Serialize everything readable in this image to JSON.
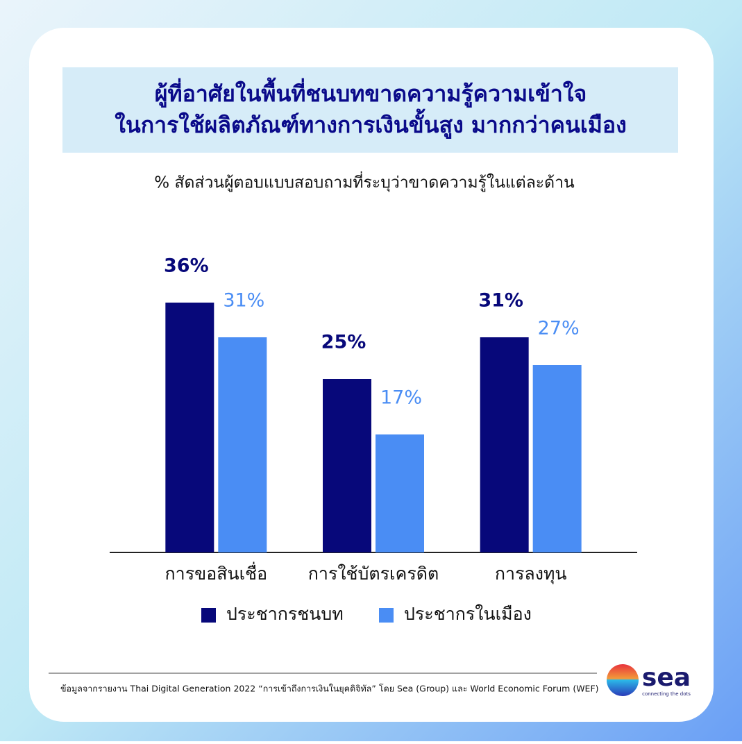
{
  "chart_data": {
    "type": "bar",
    "title": [
      "ผู้ที่อาศัยในพื้นที่ชนบทขาดความรู้ความเข้าใจ",
      "ในการใช้ผลิตภัณฑ์ทางการเงินขั้นสูง มากกว่าคนเมือง"
    ],
    "subtitle": "% สัดส่วนผู้ตอบแบบสอบถามที่ระบุว่าขาดความรู้ในแต่ละด้าน",
    "categories": [
      "การขอสินเชื่อ",
      "การใช้บัตรเครดิต",
      "การลงทุน"
    ],
    "series": [
      {
        "name": "ประชากรชนบท",
        "color": "#07087a",
        "values": [
          36,
          25,
          31
        ],
        "value_labels": [
          "36%",
          "25%",
          "31%"
        ]
      },
      {
        "name": "ประชากรในเมือง",
        "color": "#4a8df4",
        "values": [
          31,
          17,
          27
        ],
        "value_labels": [
          "31%",
          "17%",
          "27%"
        ]
      }
    ],
    "ylim": [
      0,
      40
    ]
  },
  "footer": {
    "source": "ข้อมูลจากรายงาน Thai Digital Generation 2022 “การเข้าถึงการเงินในยุคดิจิทัล” โดย Sea (Group) และ World Economic Forum (WEF)",
    "logo": "sea",
    "tagline": "connecting the dots"
  }
}
